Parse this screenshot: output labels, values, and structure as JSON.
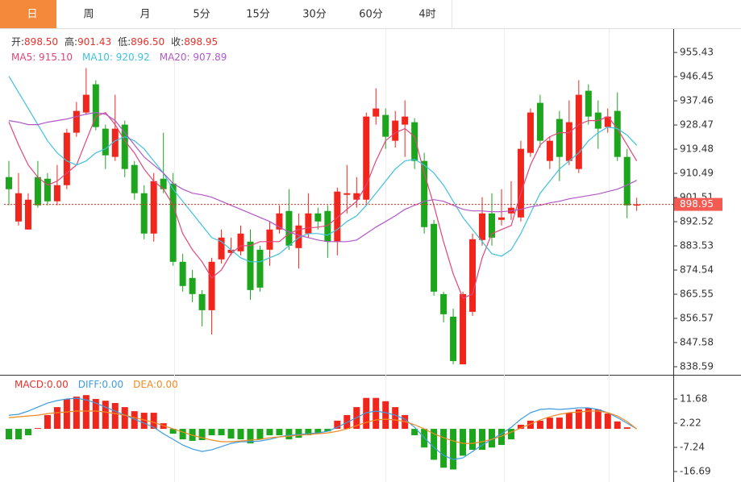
{
  "tabs": [
    "日",
    "周",
    "月",
    "5分",
    "15分",
    "30分",
    "60分",
    "4时"
  ],
  "active_tab": 0,
  "chart_data": [
    {
      "type": "candlestick",
      "info": [
        {
          "label": "开:",
          "value": "898.50"
        },
        {
          "label": "高:",
          "value": "901.43"
        },
        {
          "label": "低:",
          "value": "896.50"
        },
        {
          "label": "收:",
          "value": "898.95"
        }
      ],
      "ylim": [
        835.59,
        963.85
      ],
      "yticks": [
        955.43,
        946.45,
        937.46,
        928.47,
        919.48,
        910.49,
        901.51,
        892.52,
        883.53,
        874.54,
        865.55,
        856.57,
        847.58,
        838.59
      ],
      "up_color": "#f0261c",
      "down_color": "#1ea51e",
      "last_price": 898.95,
      "open": [
        909.1,
        892.6,
        889.6,
        909.1,
        908.5,
        900.1,
        906.1,
        925.6,
        933.1,
        943.6,
        927.1,
        916.6,
        928.6,
        913.6,
        903.1,
        888.1,
        908.5,
        906.7,
        877.6,
        871.6,
        865.6,
        859.6,
        878.5,
        880.9,
        881.5,
        885.1,
        882.1,
        882.1,
        889.6,
        896.5,
        882.7,
        888.1,
        895.6,
        896.5,
        885.1,
        902.5,
        900.7,
        900.7,
        931.6,
        932.2,
        922.6,
        928.6,
        929.5,
        915.1,
        891.7,
        865.6,
        857.2,
        839.5,
        859.0,
        885.7,
        895.6,
        893.2,
        895.6,
        894.1,
        918.1,
        936.7,
        915.1,
        930.7,
        915.1,
        912.1,
        941.2,
        933.1,
        927.7,
        933.7,
        916.6,
        898.5
      ],
      "high": [
        915.1,
        910.6,
        903.1,
        915.1,
        910.6,
        913.6,
        927.1,
        937.0,
        949.6,
        945.1,
        928.6,
        939.7,
        930.1,
        915.1,
        906.1,
        910.6,
        925.6,
        910.6,
        880.6,
        874.6,
        867.1,
        879.1,
        889.6,
        886.6,
        891.1,
        889.6,
        883.6,
        892.6,
        898.6,
        904.6,
        895.6,
        903.1,
        897.7,
        898.6,
        905.2,
        913.6,
        909.1,
        933.1,
        942.1,
        934.6,
        933.7,
        937.6,
        931.0,
        918.1,
        893.2,
        866.5,
        860.2,
        866.5,
        888.1,
        901.6,
        903.1,
        904.6,
        907.6,
        922.6,
        934.6,
        939.7,
        924.1,
        933.7,
        937.6,
        945.1,
        943.6,
        937.6,
        934.6,
        940.6,
        919.6,
        901.43
      ],
      "low": [
        898.6,
        891.1,
        889.6,
        897.7,
        898.6,
        898.6,
        904.6,
        924.1,
        932.2,
        926.5,
        912.1,
        915.1,
        909.1,
        900.7,
        886.0,
        885.1,
        903.1,
        876.1,
        866.5,
        862.6,
        853.6,
        850.6,
        877.0,
        880.0,
        880.0,
        863.5,
        866.5,
        876.1,
        888.1,
        882.1,
        875.1,
        886.6,
        889.6,
        879.1,
        880.0,
        895.6,
        897.7,
        899.2,
        928.6,
        919.6,
        920.1,
        916.6,
        912.1,
        888.1,
        865.0,
        855.1,
        839.5,
        839.5,
        857.5,
        883.6,
        883.6,
        891.1,
        893.2,
        892.6,
        916.6,
        920.1,
        912.1,
        907.6,
        913.6,
        910.6,
        928.6,
        919.6,
        925.6,
        915.1,
        893.8,
        896.5
      ],
      "close": [
        904.6,
        903.1,
        900.7,
        898.6,
        900.1,
        906.1,
        925.6,
        933.7,
        939.7,
        927.7,
        917.2,
        927.1,
        912.1,
        903.1,
        888.1,
        907.6,
        904.6,
        877.6,
        868.6,
        865.6,
        859.6,
        877.6,
        886.6,
        882.1,
        888.1,
        867.1,
        868.0,
        889.6,
        895.6,
        883.6,
        891.1,
        895.6,
        892.6,
        885.1,
        903.7,
        903.1,
        903.1,
        931.6,
        934.6,
        924.1,
        930.1,
        931.6,
        915.1,
        890.5,
        866.5,
        858.1,
        840.7,
        865.6,
        886.0,
        895.6,
        886.6,
        894.1,
        897.7,
        919.6,
        933.1,
        922.6,
        922.6,
        916.6,
        929.5,
        939.7,
        931.6,
        927.1,
        931.6,
        916.6,
        898.6,
        898.95
      ],
      "series": [
        {
          "name": "MA5: 915.10",
          "color": "#e2457a",
          "values": [
            929.6,
            921.1,
            913.6,
            909.1,
            906.1,
            907.6,
            910.6,
            913.6,
            922.6,
            931.6,
            933.1,
            928.6,
            922.6,
            918.1,
            912.1,
            907.6,
            904.6,
            898.6,
            888.1,
            882.1,
            877.6,
            871.6,
            874.6,
            880.6,
            883.6,
            883.6,
            885.1,
            885.1,
            885.1,
            888.1,
            889.6,
            890.2,
            890.5,
            891.1,
            894.1,
            897.1,
            900.1,
            906.1,
            915.1,
            922.6,
            925.6,
            927.1,
            924.1,
            910.6,
            898.6,
            885.1,
            873.1,
            864.1,
            865.6,
            879.1,
            888.1,
            889.6,
            891.1,
            903.1,
            913.6,
            921.1,
            924.1,
            925.6,
            925.6,
            928.6,
            930.1,
            930.1,
            931.6,
            927.1,
            921.1,
            915.1
          ]
        },
        {
          "name": "MA10: 920.92",
          "color": "#3fc1de",
          "values": [
            946.6,
            940.6,
            934.6,
            928.6,
            922.6,
            918.1,
            915.1,
            913.6,
            915.1,
            918.1,
            919.6,
            922.6,
            924.1,
            922.6,
            919.6,
            915.1,
            910.6,
            904.6,
            900.1,
            895.6,
            891.1,
            886.6,
            885.1,
            882.1,
            879.1,
            877.6,
            877.6,
            879.1,
            880.6,
            883.6,
            886.6,
            888.1,
            888.1,
            887.5,
            889.6,
            892.6,
            894.7,
            898.6,
            903.1,
            907.6,
            912.1,
            915.1,
            915.7,
            913.6,
            910.6,
            906.1,
            900.1,
            894.1,
            889.6,
            885.1,
            880.6,
            879.7,
            882.1,
            888.1,
            895.6,
            903.1,
            907.6,
            912.1,
            915.1,
            918.1,
            922.6,
            925.6,
            927.7,
            927.1,
            924.7,
            920.92
          ]
        },
        {
          "name": "MA20: 907.89",
          "color": "#b158c6",
          "values": [
            930.1,
            929.5,
            928.6,
            928.6,
            929.5,
            930.1,
            930.7,
            931.6,
            932.5,
            933.1,
            932.5,
            930.1,
            925.6,
            921.1,
            916.6,
            913.6,
            910.6,
            906.7,
            904.6,
            903.1,
            902.5,
            901.6,
            900.1,
            898.6,
            897.1,
            895.6,
            894.1,
            892.6,
            890.5,
            888.7,
            887.5,
            886.6,
            885.7,
            885.1,
            885.1,
            885.1,
            885.7,
            888.1,
            890.5,
            892.6,
            894.7,
            897.1,
            898.6,
            900.1,
            900.7,
            900.1,
            898.6,
            897.1,
            896.5,
            896.5,
            896.2,
            896.2,
            896.5,
            897.1,
            898.0,
            898.6,
            899.5,
            900.1,
            901.0,
            901.6,
            902.2,
            902.8,
            903.7,
            904.6,
            906.1,
            907.89
          ]
        }
      ]
    },
    {
      "type": "macd",
      "ylim": [
        -20.79,
        21.14
      ],
      "yticks": [
        11.68,
        2.22,
        -7.24,
        -16.69
      ],
      "up_color": "#f0261c",
      "down_color": "#1ea51e",
      "histogram": {
        "name": "MACD:0.00",
        "color": "#e8322b",
        "values": [
          -4.1,
          -4.1,
          -2.5,
          0.3,
          5.4,
          8.5,
          11.7,
          12.6,
          13.2,
          11.7,
          11.0,
          10.1,
          8.5,
          6.9,
          6.3,
          6.3,
          2.2,
          -1.9,
          -4.1,
          -4.7,
          -4.4,
          -2.5,
          -2.5,
          -3.8,
          -4.1,
          -5.7,
          -4.1,
          -2.5,
          -2.5,
          -4.1,
          -3.5,
          -2.5,
          -1.9,
          -1.0,
          3.2,
          5.4,
          8.5,
          12.1,
          12.1,
          10.8,
          8.5,
          5.4,
          -2.5,
          -7.3,
          -12.1,
          -15.2,
          -15.9,
          -10.5,
          -8.2,
          -8.2,
          -7.3,
          -6.3,
          -4.1,
          1.6,
          3.2,
          3.2,
          4.4,
          4.4,
          6.3,
          7.6,
          8.2,
          7.6,
          6.0,
          2.9,
          0.6,
          0
        ]
      },
      "series": [
        {
          "name": "DIFF:0.00",
          "color": "#3d9ce0",
          "values": [
            5.36,
            5.68,
            6.94,
            8.51,
            10.09,
            11.04,
            11.67,
            11.98,
            11.35,
            10.09,
            8.51,
            6.94,
            5.36,
            3.78,
            2.21,
            0.63,
            -1.89,
            -4.1,
            -6.31,
            -7.88,
            -8.83,
            -8.2,
            -6.94,
            -5.68,
            -5.04,
            -5.04,
            -4.73,
            -4.1,
            -3.15,
            -2.52,
            -2.21,
            -1.89,
            -1.58,
            -0.95,
            0.63,
            2.52,
            4.41,
            6.31,
            6.94,
            6.31,
            5.36,
            3.78,
            0.63,
            -3.47,
            -7.25,
            -10.4,
            -11.98,
            -11.35,
            -8.83,
            -6.31,
            -4.1,
            -1.89,
            0.63,
            3.78,
            6.31,
            7.57,
            7.88,
            7.57,
            7.88,
            8.2,
            8.2,
            7.57,
            6.31,
            4.41,
            2.21,
            0
          ]
        },
        {
          "name": "DEA:0.00",
          "color": "#f08a24",
          "values": [
            4.41,
            4.73,
            5.04,
            5.36,
            5.99,
            6.31,
            6.62,
            6.94,
            6.94,
            6.94,
            6.62,
            5.99,
            5.36,
            4.41,
            3.47,
            2.52,
            1.26,
            0,
            -1.26,
            -2.52,
            -3.47,
            -4.41,
            -5.04,
            -5.04,
            -4.73,
            -4.41,
            -4.1,
            -3.47,
            -3.15,
            -2.84,
            -2.52,
            -2.21,
            -1.89,
            -1.58,
            -0.95,
            0,
            1.26,
            2.52,
            3.47,
            3.78,
            3.47,
            2.84,
            1.58,
            0,
            -1.89,
            -3.47,
            -4.73,
            -5.68,
            -5.68,
            -5.04,
            -4.1,
            -2.84,
            -1.26,
            0.32,
            1.89,
            3.47,
            4.73,
            5.68,
            6.31,
            6.62,
            6.94,
            6.94,
            6.31,
            5.04,
            2.84,
            0
          ]
        }
      ]
    }
  ]
}
